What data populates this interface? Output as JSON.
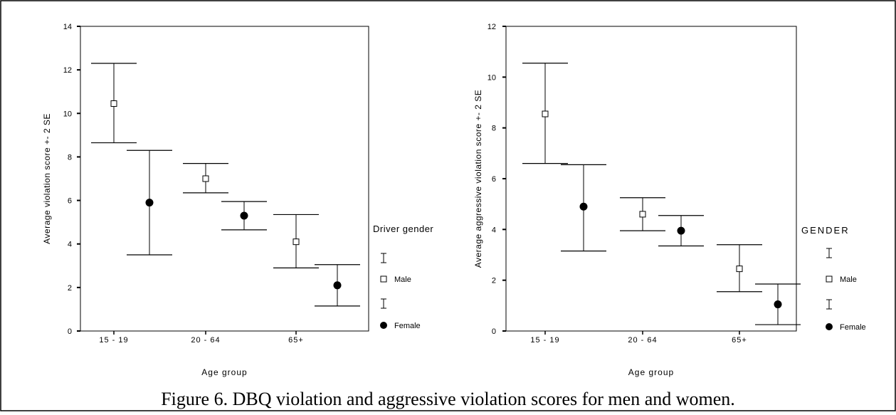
{
  "caption": "Figure 6.  DBQ violation and aggressive violation scores for men and women.",
  "chart_data": [
    {
      "type": "scatter",
      "title": "",
      "xlabel": "Age group",
      "ylabel": "Average violation score +- 2 SE",
      "categories": [
        "15 - 19",
        "20 - 64",
        "65+"
      ],
      "ylim": [
        0,
        14
      ],
      "yticks": [
        0,
        2,
        4,
        6,
        8,
        10,
        12,
        14
      ],
      "grid": false,
      "legend": {
        "title": "Driver gender",
        "position": "right",
        "entries": [
          "Male",
          "Female"
        ]
      },
      "series": [
        {
          "name": "Male",
          "marker": "open-square",
          "color": "#000000",
          "values": [
            10.45,
            7.0,
            4.1
          ],
          "lower": [
            8.65,
            6.35,
            2.9
          ],
          "upper": [
            12.3,
            7.7,
            5.35
          ]
        },
        {
          "name": "Female",
          "marker": "filled-circle",
          "color": "#000000",
          "values": [
            5.9,
            5.3,
            2.1
          ],
          "lower": [
            3.5,
            4.65,
            1.15
          ],
          "upper": [
            8.3,
            5.95,
            3.05
          ]
        }
      ]
    },
    {
      "type": "scatter",
      "title": "",
      "xlabel": "Age group",
      "ylabel": "Average aggressive violation score +- 2 SE",
      "categories": [
        "15 - 19",
        "20 - 64",
        "65+"
      ],
      "ylim": [
        0,
        12
      ],
      "yticks": [
        0,
        2,
        4,
        6,
        8,
        10,
        12
      ],
      "grid": false,
      "legend": {
        "title": "GENDER",
        "position": "right",
        "entries": [
          "Male",
          "Female"
        ]
      },
      "series": [
        {
          "name": "Male",
          "marker": "open-square",
          "color": "#000000",
          "values": [
            8.55,
            4.6,
            2.45
          ],
          "lower": [
            6.6,
            3.95,
            1.55
          ],
          "upper": [
            10.55,
            5.25,
            3.4
          ]
        },
        {
          "name": "Female",
          "marker": "filled-circle",
          "color": "#000000",
          "values": [
            4.9,
            3.95,
            1.05
          ],
          "lower": [
            3.15,
            3.35,
            0.25
          ],
          "upper": [
            6.55,
            4.55,
            1.85
          ]
        }
      ]
    }
  ]
}
